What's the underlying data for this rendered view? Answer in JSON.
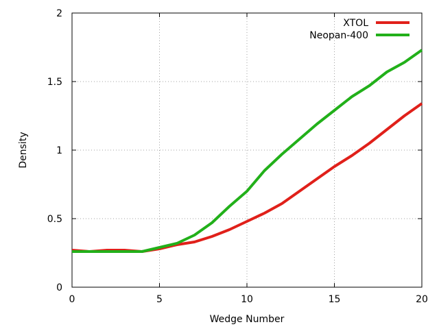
{
  "chart_data": {
    "type": "line",
    "title": "",
    "xlabel": "Wedge Number",
    "ylabel": "Density",
    "xlim": [
      0,
      20
    ],
    "ylim": [
      0,
      2
    ],
    "xticks": [
      "0",
      "5",
      "10",
      "15",
      "20"
    ],
    "yticks": [
      "0",
      "0.5",
      "1",
      "1.5",
      "2"
    ],
    "grid": true,
    "legend_position": "top-right",
    "series": [
      {
        "name": "XTOL",
        "color": "#e0201a",
        "x": [
          0,
          1,
          2,
          3,
          4,
          5,
          6,
          7,
          8,
          9,
          10,
          11,
          12,
          13,
          14,
          15,
          16,
          17,
          18,
          19,
          20
        ],
        "values": [
          0.27,
          0.26,
          0.27,
          0.27,
          0.26,
          0.28,
          0.31,
          0.33,
          0.37,
          0.42,
          0.48,
          0.54,
          0.61,
          0.7,
          0.79,
          0.88,
          0.96,
          1.05,
          1.15,
          1.25,
          1.34
        ]
      },
      {
        "name": "Neopan-400",
        "color": "#22b01a",
        "x": [
          0,
          1,
          2,
          3,
          4,
          5,
          6,
          7,
          8,
          9,
          10,
          11,
          12,
          13,
          14,
          15,
          16,
          17,
          18,
          19,
          20
        ],
        "values": [
          0.26,
          0.26,
          0.26,
          0.26,
          0.26,
          0.29,
          0.32,
          0.38,
          0.47,
          0.59,
          0.7,
          0.85,
          0.97,
          1.08,
          1.19,
          1.29,
          1.39,
          1.47,
          1.57,
          1.64,
          1.73
        ]
      }
    ]
  }
}
